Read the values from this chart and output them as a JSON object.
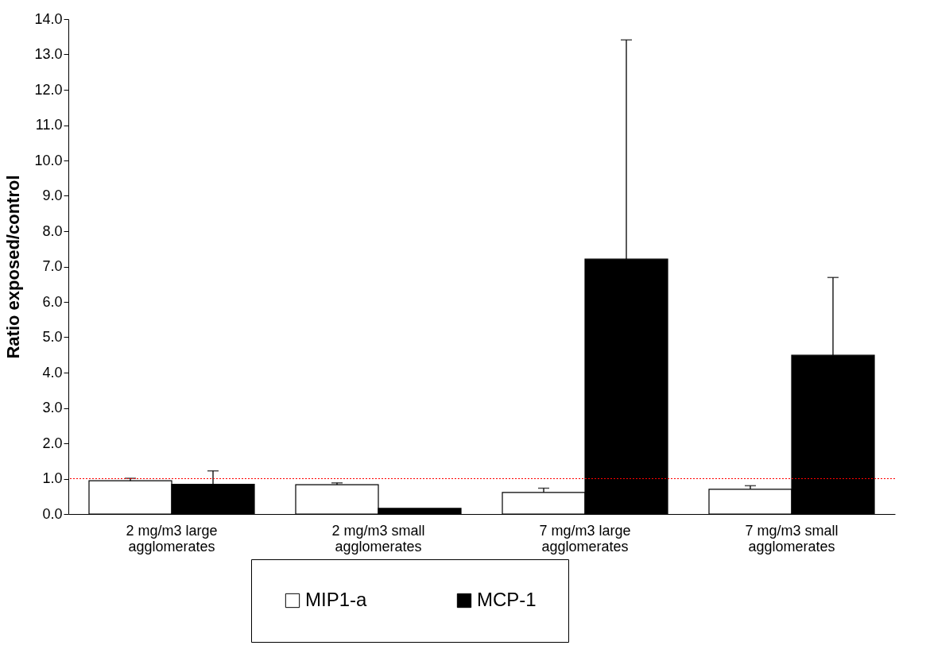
{
  "chart_data": {
    "type": "bar",
    "ylabel": "Ratio exposed/control",
    "categories": [
      "2 mg/m3 large agglomerates",
      "2 mg/m3 small agglomerates",
      "7 mg/m3 large agglomerates",
      "7 mg/m3 small agglomerates"
    ],
    "series": [
      {
        "name": "MIP1-a",
        "color": "#ffffff",
        "values": [
          0.94,
          0.83,
          0.61,
          0.7
        ],
        "errors": [
          [
            0.94,
            1.01
          ],
          [
            0.83,
            0.88
          ],
          [
            0.61,
            0.73
          ],
          [
            0.7,
            0.8
          ]
        ]
      },
      {
        "name": "MCP-1",
        "color": "#000000",
        "values": [
          0.84,
          0.16,
          7.21,
          4.49
        ],
        "errors": [
          [
            0.84,
            1.22
          ],
          null,
          [
            7.21,
            13.41
          ],
          [
            4.49,
            6.69
          ]
        ]
      }
    ],
    "ylim": [
      0,
      14
    ],
    "yticks": [
      {
        "value": 0,
        "label": "0.0"
      },
      {
        "value": 1,
        "label": "1.0"
      },
      {
        "value": 2,
        "label": "2.0"
      },
      {
        "value": 3,
        "label": "3.0"
      },
      {
        "value": 4,
        "label": "4.0"
      },
      {
        "value": 5,
        "label": "5.0"
      },
      {
        "value": 6,
        "label": "6.0"
      },
      {
        "value": 7,
        "label": "7.0"
      },
      {
        "value": 8,
        "label": "8.0"
      },
      {
        "value": 9,
        "label": "9.0"
      },
      {
        "value": 10,
        "label": "10.0"
      },
      {
        "value": 11,
        "label": "11.0"
      },
      {
        "value": 12,
        "label": "12.0"
      },
      {
        "value": 13,
        "label": "13.0"
      },
      {
        "value": 14,
        "label": "14.0"
      }
    ],
    "ref_lines": [
      {
        "axis": "y",
        "value": 1.0,
        "color": "#ff0000",
        "line_style": "dotted"
      }
    ],
    "legend": "bottom",
    "grid": false
  }
}
